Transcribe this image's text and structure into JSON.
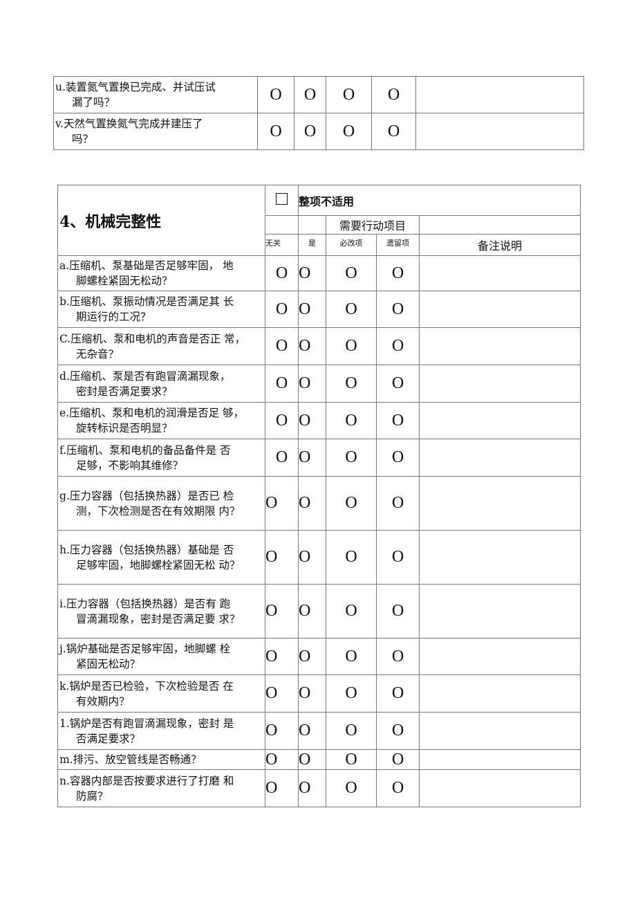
{
  "mark": "O",
  "top_rows": [
    {
      "l1": "u.装置氮气置换已完成、并试压试",
      "l2": "漏了吗？"
    },
    {
      "l1": "v.天然气置换氮气完成并建压了",
      "l2": "吗？"
    }
  ],
  "section": {
    "title": "4、机械完整性",
    "not_applicable": "整项不适用",
    "action_items": "需要行动项目",
    "col_irrelevant": "无关",
    "col_yes": "是",
    "col_must_fix": "必改项",
    "col_remaining": "遗留项",
    "col_remarks": "备注说明"
  },
  "rows": [
    {
      "l1": "a.压缩机、泵基础是否足够牢固， 地",
      "l2": "脚螺栓紧固无松动？"
    },
    {
      "l1": "b.压缩机、泵振动情况是否满足其 长",
      "l2": "期运行的工况？"
    },
    {
      "l1": "C.压缩机、泵和电机的声音是否正 常，",
      "l2": "无杂音？"
    },
    {
      "l1": "d.压缩机、泵是否有跑冒滴漏现象，",
      "l2": "密封是否满足要求？"
    },
    {
      "l1": "e.压缩机、泵和电机的润滑是否足 够，",
      "l2": "旋转标识是否明显？"
    },
    {
      "l1": "f.压缩机、泵和电机的备品备件是 否",
      "l2": "足够，不影响其维修？"
    },
    {
      "l1": "g.压力容器（包括换热器）是否已 检",
      "l2": "测，下次检测是否在有效期限 内？"
    },
    {
      "l1": "h.压力容器（包括换热器）基础是 否",
      "l2": "足够牢固，地脚螺栓紧固无松 动？"
    },
    {
      "l1": "i.压力容器（包括换热器）是否有 跑",
      "l2": "冒滴漏现象，密封是否满足要 求？"
    },
    {
      "l1": "j.锅炉基础是否足够牢固，地脚螺 栓",
      "l2": "紧固无松动？"
    },
    {
      "l1": "k.锅炉是否已检验，下次检验是否 在",
      "l2": "有效期内？"
    },
    {
      "l1": "1.锅炉是否有跑冒滴漏现象，密封 是",
      "l2": "否满足要求？"
    },
    {
      "l1": "m.排污、放空管线是否畅通？",
      "l2": ""
    },
    {
      "l1": "n.容器内部是否按要求进行了打磨 和",
      "l2": "防腐？"
    }
  ]
}
